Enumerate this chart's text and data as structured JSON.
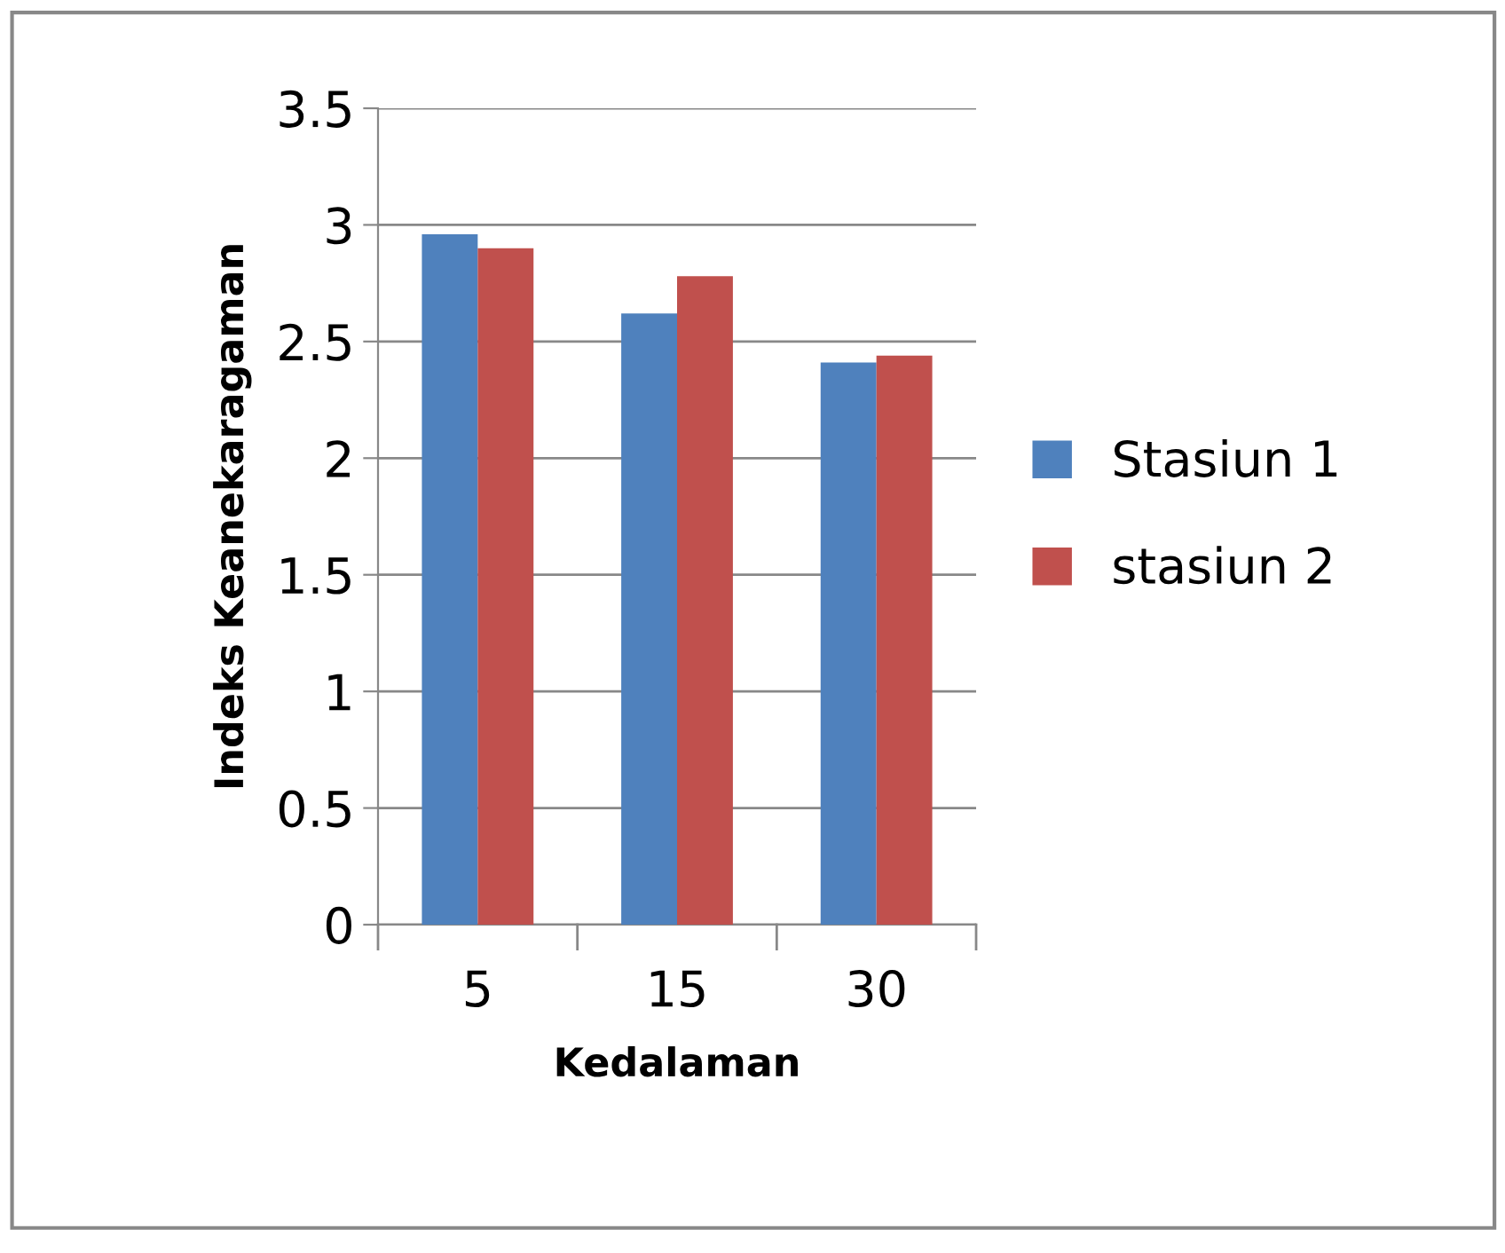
{
  "chart_data": {
    "type": "bar",
    "xlabel": "Kedalaman",
    "ylabel": "Indeks Keanekaragaman",
    "categories": [
      "5",
      "15",
      "30"
    ],
    "series": [
      {
        "name": "Stasiun 1",
        "color": "#4f81bd",
        "values": [
          2.96,
          2.62,
          2.41
        ]
      },
      {
        "name": "stasiun 2",
        "color": "#c0504d",
        "values": [
          2.9,
          2.78,
          2.44
        ]
      }
    ],
    "ylim": [
      0,
      3.5
    ],
    "yticks": [
      0,
      0.5,
      1,
      1.5,
      2,
      2.5,
      3,
      3.5
    ],
    "grid": "y",
    "legend": "right"
  }
}
